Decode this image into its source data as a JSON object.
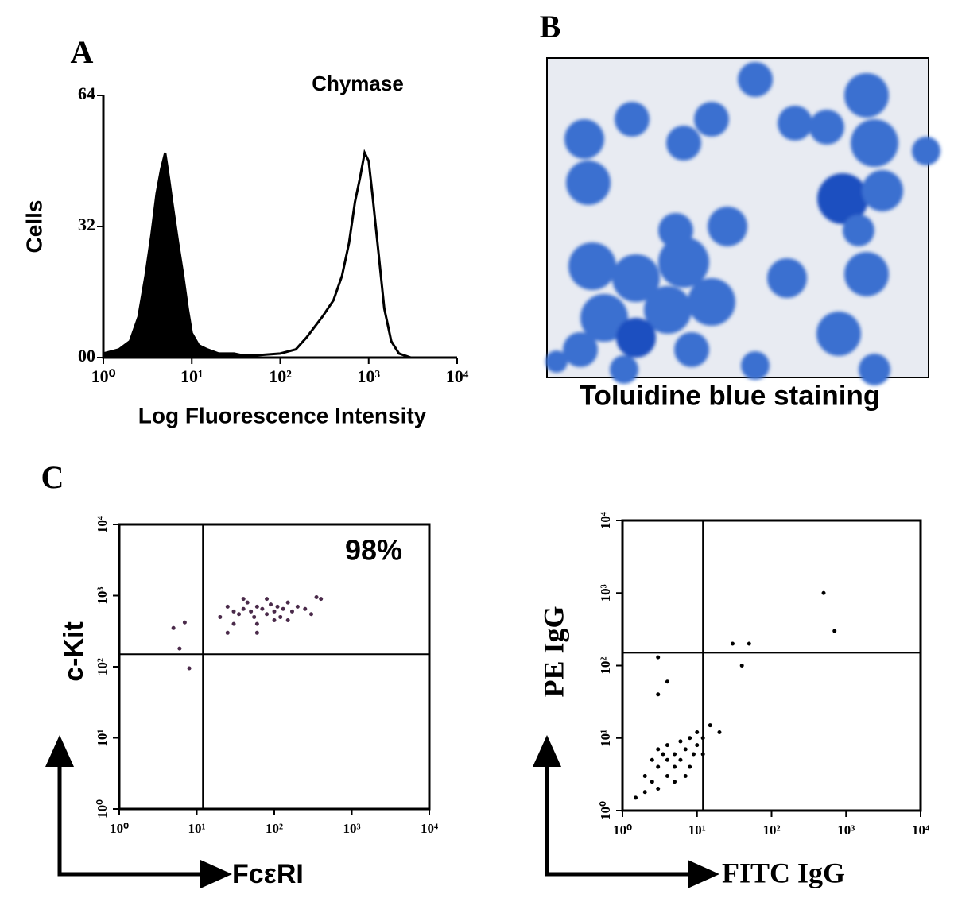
{
  "panel_labels": [
    "A",
    "B",
    "C"
  ],
  "image_panel": {
    "caption": "Toluidine blue staining"
  },
  "chart_data": [
    {
      "type": "line",
      "title": "Chymase",
      "xlabel": "Log Fluorescence Intensity",
      "ylabel": "Cells",
      "log_x": true,
      "xlim": [
        1,
        10000
      ],
      "xticks": [
        {
          "value": 1,
          "label": "10⁰"
        },
        {
          "value": 10,
          "label": "10¹"
        },
        {
          "value": 100,
          "label": "10²"
        },
        {
          "value": 1000,
          "label": "10³"
        },
        {
          "value": 10000,
          "label": "10⁴"
        }
      ],
      "ylim": [
        0,
        64
      ],
      "yticks": [
        {
          "value": 0,
          "label": "00"
        },
        32,
        64
      ],
      "series": [
        {
          "color": "#000000",
          "filled": true,
          "x": [
            1,
            1.5,
            2,
            2.5,
            3,
            3.5,
            4,
            4.5,
            5,
            5.5,
            6,
            7,
            8,
            9,
            10,
            12,
            15,
            20,
            30,
            50
          ],
          "values": [
            1,
            2,
            4,
            10,
            20,
            30,
            40,
            46,
            50,
            44,
            38,
            28,
            20,
            12,
            6,
            3,
            2,
            1,
            1,
            0
          ]
        },
        {
          "color": "#000000",
          "filled": false,
          "x": [
            10,
            20,
            50,
            100,
            150,
            200,
            300,
            400,
            500,
            600,
            700,
            800,
            900,
            1000,
            1100,
            1300,
            1500,
            1800,
            2200,
            3000
          ],
          "values": [
            1,
            0.5,
            0.5,
            1,
            2,
            5,
            10,
            14,
            20,
            28,
            38,
            44,
            50,
            48,
            40,
            25,
            12,
            4,
            1,
            0
          ]
        }
      ]
    },
    {
      "type": "scatter",
      "xlabel": "FcεRI",
      "ylabel": "c-Kit",
      "annotation": "98%",
      "log_x": true,
      "log_y": true,
      "xlim": [
        1,
        10000
      ],
      "ylim": [
        1,
        10000
      ],
      "xticks": [
        {
          "value": 1,
          "label": "10⁰"
        },
        {
          "value": 10,
          "label": "10¹"
        },
        {
          "value": 100,
          "label": "10²"
        },
        {
          "value": 1000,
          "label": "10³"
        },
        {
          "value": 10000,
          "label": "10⁴"
        }
      ],
      "yticks": [
        {
          "value": 1,
          "label": "10⁰"
        },
        {
          "value": 10,
          "label": "10¹"
        },
        {
          "value": 100,
          "label": "10²"
        },
        {
          "value": 1000,
          "label": "10³"
        },
        {
          "value": 10000,
          "label": "10⁴"
        }
      ],
      "quadrant_x": 12,
      "quadrant_y": 150,
      "series": [
        {
          "color": "#4a2a4a",
          "x": [
            20,
            25,
            30,
            35,
            40,
            45,
            50,
            55,
            60,
            70,
            80,
            90,
            100,
            110,
            120,
            130,
            150,
            170,
            200,
            250,
            300,
            30,
            60,
            100,
            150,
            40,
            80,
            5,
            6,
            7,
            8,
            350,
            400,
            25,
            60
          ],
          "y": [
            500,
            700,
            600,
            550,
            650,
            800,
            600,
            500,
            700,
            650,
            550,
            750,
            600,
            700,
            500,
            650,
            800,
            600,
            700,
            650,
            550,
            400,
            400,
            450,
            450,
            900,
            900,
            350,
            180,
            420,
            95,
            950,
            900,
            300,
            300
          ]
        }
      ]
    },
    {
      "type": "scatter",
      "xlabel": "FITC IgG",
      "ylabel": "PE IgG",
      "log_x": true,
      "log_y": true,
      "xlim": [
        1,
        10000
      ],
      "ylim": [
        1,
        10000
      ],
      "xticks": [
        {
          "value": 1,
          "label": "10⁰"
        },
        {
          "value": 10,
          "label": "10¹"
        },
        {
          "value": 100,
          "label": "10²"
        },
        {
          "value": 1000,
          "label": "10³"
        },
        {
          "value": 10000,
          "label": "10⁴"
        }
      ],
      "yticks": [
        {
          "value": 1,
          "label": "10⁰"
        },
        {
          "value": 10,
          "label": "10¹"
        },
        {
          "value": 100,
          "label": "10²"
        },
        {
          "value": 1000,
          "label": "10³"
        },
        {
          "value": 10000,
          "label": "10⁴"
        }
      ],
      "quadrant_x": 12,
      "quadrant_y": 150,
      "series": [
        {
          "color": "#000000",
          "x": [
            2,
            2.5,
            3,
            3,
            3.5,
            4,
            4,
            5,
            5,
            6,
            6,
            7,
            7,
            8,
            9,
            10,
            10,
            12,
            15,
            20,
            1.5,
            2,
            2.5,
            3,
            4,
            5,
            8,
            12,
            3,
            4,
            3,
            30,
            50,
            500,
            700,
            40
          ],
          "y": [
            3,
            5,
            2,
            4,
            6,
            3,
            8,
            4,
            6,
            5,
            9,
            3,
            7,
            10,
            6,
            8,
            12,
            10,
            15,
            12,
            1.5,
            1.8,
            2.5,
            7,
            5,
            2.5,
            4,
            6,
            40,
            60,
            130,
            200,
            200,
            1000,
            300,
            100
          ]
        }
      ]
    }
  ]
}
